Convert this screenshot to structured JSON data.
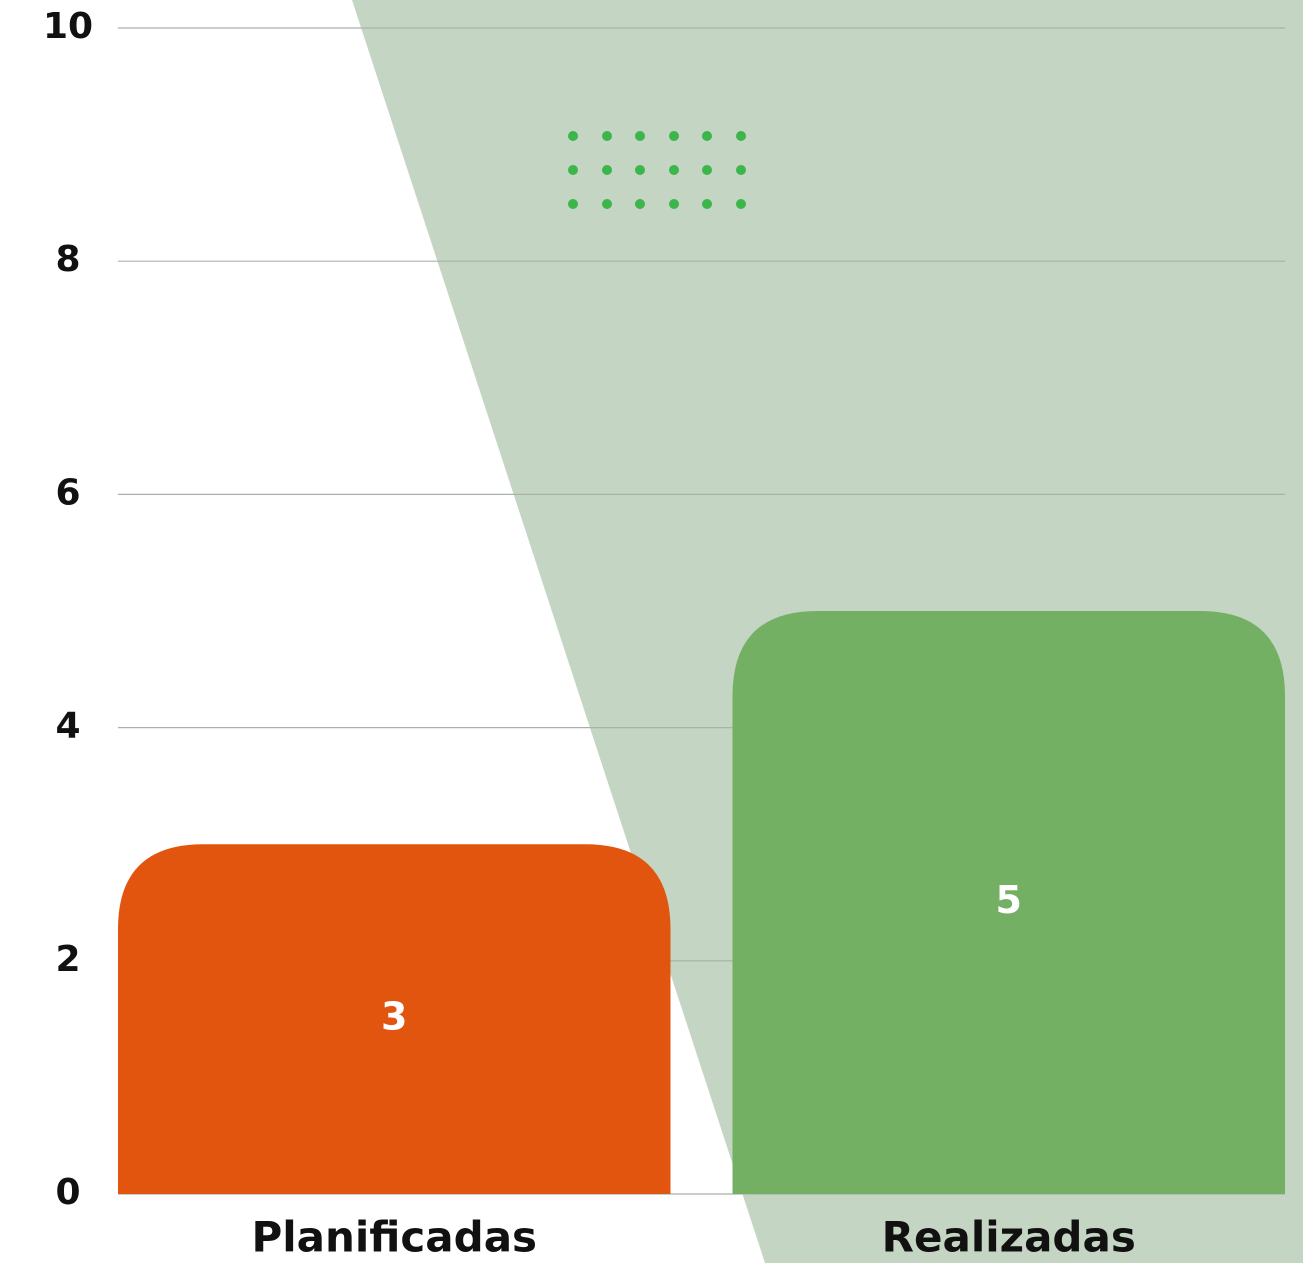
{
  "chart_data": {
    "type": "bar",
    "categories": [
      "Planificadas",
      "Realizadas"
    ],
    "values": [
      3,
      5
    ],
    "colors": [
      "#e2550f",
      "#74b064"
    ],
    "ylim": [
      0,
      10
    ],
    "yticks": [
      0,
      2,
      4,
      6,
      8,
      10
    ],
    "grid": true
  }
}
